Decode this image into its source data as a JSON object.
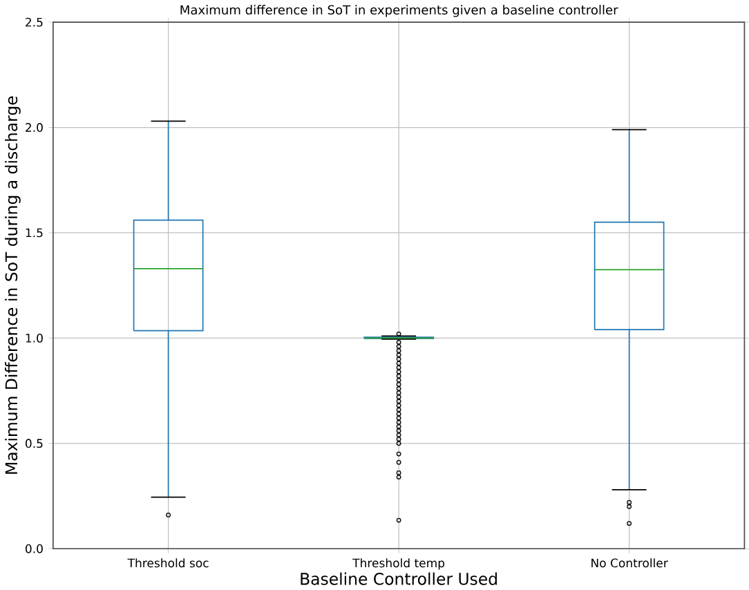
{
  "chart_data": {
    "type": "box",
    "title": "Maximum difference in SoT in experiments given a baseline controller",
    "xlabel": "Baseline Controller Used",
    "ylabel": "Maximum Difference in SoT during a discharge",
    "categories": [
      "Threshold soc",
      "Threshold temp",
      "No Controller"
    ],
    "boxes": [
      {
        "low": 0.245,
        "q1": 1.035,
        "median": 1.33,
        "q3": 1.56,
        "high": 2.03,
        "outliers": [
          0.16
        ]
      },
      {
        "low": 0.995,
        "q1": 0.998,
        "median": 1.0,
        "q3": 1.004,
        "high": 1.01,
        "outliers": [
          1.02,
          0.98,
          0.96,
          0.94,
          0.92,
          0.9,
          0.88,
          0.86,
          0.84,
          0.82,
          0.8,
          0.78,
          0.76,
          0.74,
          0.72,
          0.7,
          0.68,
          0.66,
          0.64,
          0.62,
          0.6,
          0.58,
          0.56,
          0.54,
          0.52,
          0.5,
          0.45,
          0.41,
          0.36,
          0.34,
          0.135
        ]
      },
      {
        "low": 0.28,
        "q1": 1.04,
        "median": 1.325,
        "q3": 1.55,
        "high": 1.99,
        "outliers": [
          0.22,
          0.2,
          0.12
        ]
      }
    ],
    "color": "#1f77b4",
    "ylim": [
      0,
      2.5
    ],
    "yticks": [
      {
        "value": 0,
        "label": "0.0"
      },
      0.5,
      {
        "value": 1,
        "label": "1.0"
      },
      1.5,
      {
        "value": 2,
        "label": "2.0"
      },
      2.5
    ],
    "grid": true
  }
}
